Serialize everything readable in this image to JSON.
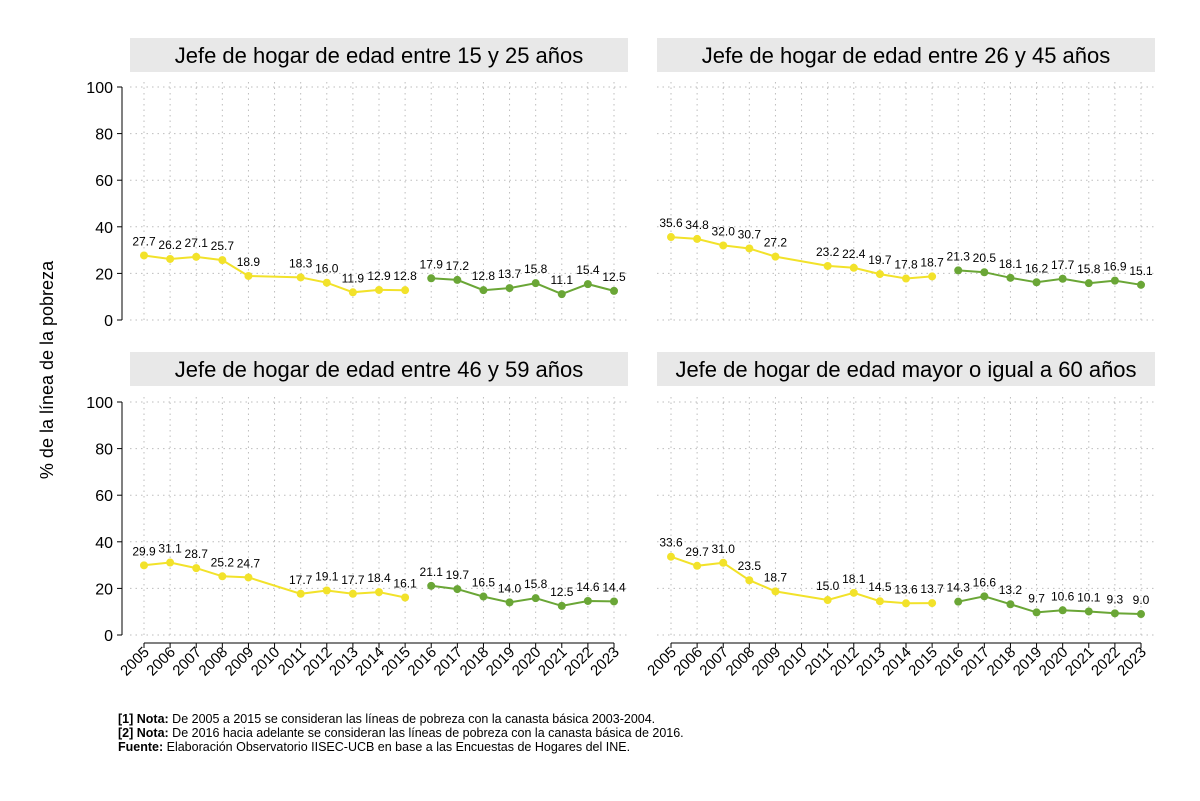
{
  "chart_data": {
    "type": "line",
    "ylabel": "% de la línea de la pobreza",
    "ylim": [
      0,
      100
    ],
    "yticks": [
      0,
      20,
      40,
      60,
      80,
      100
    ],
    "years": [
      "2005",
      "2006",
      "2007",
      "2008",
      "2009",
      "2010",
      "2011",
      "2012",
      "2013",
      "2014",
      "2015",
      "2016",
      "2017",
      "2018",
      "2019",
      "2020",
      "2021",
      "2022",
      "2023"
    ],
    "colors": {
      "series_2005_2015": "#f2e22a",
      "series_2016_2023": "#6aa636",
      "strip": "#e8e8e8"
    },
    "panels": [
      {
        "title": "Jefe de hogar de edad entre 15 y 25 años",
        "series": [
          {
            "name": "2005-2015",
            "x": [
              "2005",
              "2006",
              "2007",
              "2008",
              "2009",
              "2011",
              "2012",
              "2013",
              "2014",
              "2015"
            ],
            "values": [
              27.7,
              26.2,
              27.1,
              25.7,
              18.9,
              18.3,
              16.0,
              11.9,
              12.9,
              12.8
            ],
            "labels": [
              "27.7",
              "26.2",
              "27.1",
              "25.7",
              "18.9",
              "18.3",
              "16.0",
              "11.9",
              "12.9",
              "12.8"
            ]
          },
          {
            "name": "2016-2023",
            "x": [
              "2016",
              "2017",
              "2018",
              "2019",
              "2020",
              "2021",
              "2022",
              "2023"
            ],
            "values": [
              17.9,
              17.2,
              12.8,
              13.7,
              15.8,
              11.1,
              15.4,
              12.5
            ],
            "labels": [
              "17.9",
              "17.2",
              "12.8",
              "13.7",
              "15.8",
              "11.1",
              "15.4",
              "12.5"
            ]
          }
        ]
      },
      {
        "title": "Jefe de hogar de edad entre 26 y 45 años",
        "series": [
          {
            "name": "2005-2015",
            "x": [
              "2005",
              "2006",
              "2007",
              "2008",
              "2009",
              "2011",
              "2012",
              "2013",
              "2014",
              "2015"
            ],
            "values": [
              35.6,
              34.8,
              32.0,
              30.7,
              27.2,
              23.2,
              22.4,
              19.7,
              17.8,
              18.7
            ],
            "labels": [
              "35.6",
              "34.8",
              "32.0",
              "30.7",
              "27.2",
              "23.2",
              "22.4",
              "19.7",
              "17.8",
              "18.7"
            ]
          },
          {
            "name": "2016-2023",
            "x": [
              "2016",
              "2017",
              "2018",
              "2019",
              "2020",
              "2021",
              "2022",
              "2023"
            ],
            "values": [
              21.3,
              20.5,
              18.1,
              16.2,
              17.7,
              15.8,
              16.9,
              15.1
            ],
            "labels": [
              "21.3",
              "20.5",
              "18.1",
              "16.2",
              "17.7",
              "15.8",
              "16.9",
              "15.1"
            ]
          }
        ]
      },
      {
        "title": "Jefe de hogar de edad entre 46 y 59 años",
        "series": [
          {
            "name": "2005-2015",
            "x": [
              "2005",
              "2006",
              "2007",
              "2008",
              "2009",
              "2011",
              "2012",
              "2013",
              "2014",
              "2015"
            ],
            "values": [
              29.9,
              31.1,
              28.7,
              25.2,
              24.7,
              17.7,
              19.1,
              17.7,
              18.4,
              16.1
            ],
            "labels": [
              "29.9",
              "31.1",
              "28.7",
              "25.2",
              "24.7",
              "17.7",
              "19.1",
              "17.7",
              "18.4",
              "16.1"
            ]
          },
          {
            "name": "2016-2023",
            "x": [
              "2016",
              "2017",
              "2018",
              "2019",
              "2020",
              "2021",
              "2022",
              "2023"
            ],
            "values": [
              21.1,
              19.7,
              16.5,
              14.0,
              15.8,
              12.5,
              14.6,
              14.4
            ],
            "labels": [
              "21.1",
              "19.7",
              "16.5",
              "14.0",
              "15.8",
              "12.5",
              "14.6",
              "14.4"
            ]
          }
        ]
      },
      {
        "title": "Jefe de hogar de edad mayor o igual a 60 años",
        "series": [
          {
            "name": "2005-2015",
            "x": [
              "2005",
              "2006",
              "2007",
              "2008",
              "2009",
              "2011",
              "2012",
              "2013",
              "2014",
              "2015"
            ],
            "values": [
              33.6,
              29.7,
              31.0,
              23.5,
              18.7,
              15.0,
              18.1,
              14.5,
              13.6,
              13.7
            ],
            "labels": [
              "33.6",
              "29.7",
              "31.0",
              "23.5",
              "18.7",
              "15.0",
              "18.1",
              "14.5",
              "13.6",
              "13.7"
            ]
          },
          {
            "name": "2016-2023",
            "x": [
              "2016",
              "2017",
              "2018",
              "2019",
              "2020",
              "2021",
              "2022",
              "2023"
            ],
            "values": [
              14.3,
              16.6,
              13.2,
              9.7,
              10.6,
              10.1,
              9.3,
              9.0
            ],
            "labels": [
              "14.3",
              "16.6",
              "13.2",
              "9.7",
              "10.6",
              "10.1",
              "9.3",
              "9.0"
            ]
          }
        ]
      }
    ]
  },
  "notes": [
    {
      "label": "[1] Nota:",
      "text": " De 2005 a 2015 se consideran las líneas de pobreza con la canasta básica 2003-2004."
    },
    {
      "label": "[2] Nota:",
      "text": " De 2016 hacia adelante se consideran las líneas de pobreza con la canasta básica de 2016."
    },
    {
      "label": "Fuente:",
      "text": " Elaboración Observatorio IISEC-UCB en base a las Encuestas de Hogares del INE."
    }
  ]
}
